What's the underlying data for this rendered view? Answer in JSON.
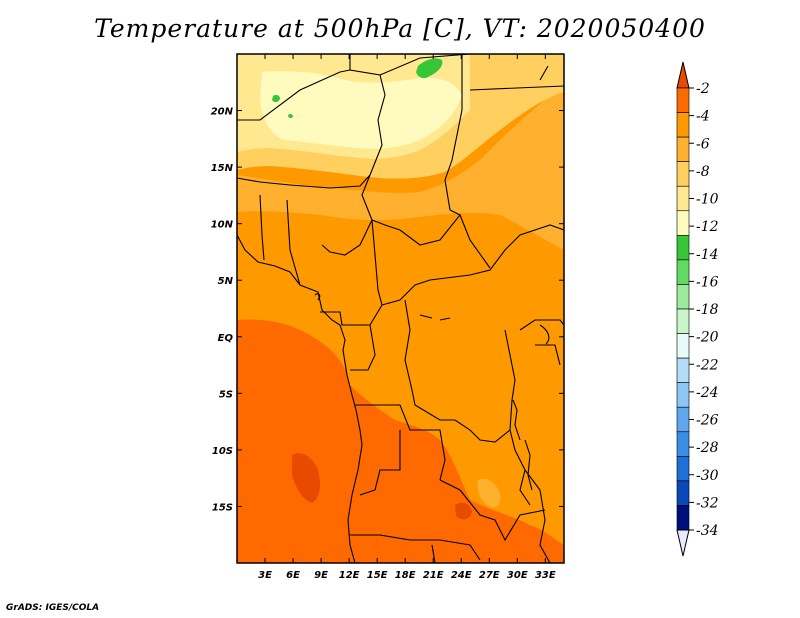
{
  "title": "Temperature at 500hPa [C], VT: 2020050400",
  "credit": "GrADS: IGES/COLA",
  "map": {
    "lon_range": [
      0,
      35
    ],
    "lat_range": [
      -20,
      25
    ],
    "lon_ticks": [
      {
        "lon": 3,
        "label": "3E"
      },
      {
        "lon": 6,
        "label": "6E"
      },
      {
        "lon": 9,
        "label": "9E"
      },
      {
        "lon": 12,
        "label": "12E"
      },
      {
        "lon": 15,
        "label": "15E"
      },
      {
        "lon": 18,
        "label": "18E"
      },
      {
        "lon": 21,
        "label": "21E"
      },
      {
        "lon": 24,
        "label": "24E"
      },
      {
        "lon": 27,
        "label": "27E"
      },
      {
        "lon": 30,
        "label": "30E"
      },
      {
        "lon": 33,
        "label": "33E"
      }
    ],
    "lat_ticks": [
      {
        "lat": 20,
        "label": "20N"
      },
      {
        "lat": 15,
        "label": "15N"
      },
      {
        "lat": 10,
        "label": "10N"
      },
      {
        "lat": 5,
        "label": "5N"
      },
      {
        "lat": 0,
        "label": "EQ"
      },
      {
        "lat": -5,
        "label": "5S"
      },
      {
        "lat": -10,
        "label": "10S"
      },
      {
        "lat": -15,
        "label": "15S"
      }
    ]
  },
  "colorbar": {
    "levels": [
      "-2",
      "-4",
      "-6",
      "-8",
      "-10",
      "-12",
      "-14",
      "-16",
      "-18",
      "-20",
      "-22",
      "-24",
      "-26",
      "-28",
      "-30",
      "-32",
      "-34"
    ],
    "colors": [
      "#e84a00",
      "#ff6a00",
      "#ff9900",
      "#ffb02e",
      "#ffd060",
      "#ffe890",
      "#fffbbf",
      "#37c637",
      "#62da62",
      "#9ceb9c",
      "#c9f5c9",
      "#e8fbf8",
      "#b2ddf6",
      "#8cc6f2",
      "#5fa7ec",
      "#3b8ee5",
      "#1e6fd8",
      "#0a4ab8",
      "#00107a",
      "#e9e9ff"
    ],
    "top_color": "#e84a00",
    "bottom_color": "#e9e9ff"
  }
}
